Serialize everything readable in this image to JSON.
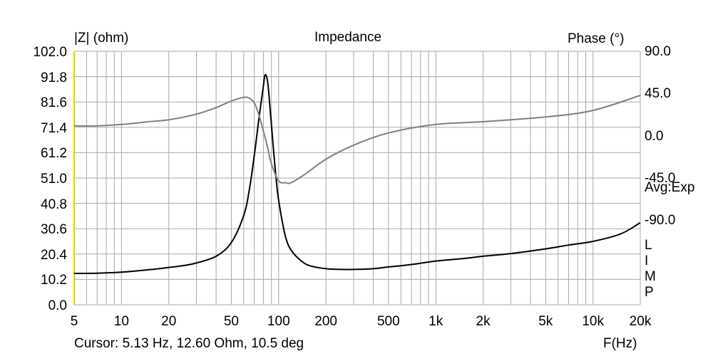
{
  "chart_data": {
    "type": "line",
    "title": "Impedance",
    "ylabel": "|Z| (ohm)",
    "y2label": "Phase (°)",
    "xlabel": "F(Hz)",
    "xscale": "log",
    "xlim": [
      5,
      20000
    ],
    "ylim": [
      0,
      102
    ],
    "y2lim": [
      -180,
      90
    ],
    "grid": true,
    "x_ticks": [
      5,
      10,
      20,
      50,
      100,
      200,
      500,
      1000,
      2000,
      5000,
      10000,
      20000
    ],
    "x_tick_labels": [
      "5",
      "10",
      "20",
      "50",
      "100",
      "200",
      "500",
      "1k",
      "2k",
      "5k",
      "10k",
      "20k"
    ],
    "y_ticks": [
      0.0,
      10.2,
      20.4,
      30.6,
      40.8,
      51.0,
      61.2,
      71.4,
      81.6,
      91.8,
      102.0
    ],
    "y_tick_labels": [
      "0.0",
      "10.2",
      "20.4",
      "30.6",
      "40.8",
      "51.0",
      "61.2",
      "71.4",
      "81.6",
      "91.8",
      "102.0"
    ],
    "y2_ticks": [
      90,
      45,
      0,
      -45,
      -90
    ],
    "y2_tick_labels": [
      "90.0",
      "45.0",
      "0.0",
      "-45.0",
      "-90.0"
    ],
    "series": [
      {
        "key": "impedance",
        "color": "#000000",
        "axis": "left",
        "x": [
          5,
          7,
          10,
          15,
          20,
          25,
          30,
          40,
          50,
          60,
          65,
          70,
          75,
          80,
          82,
          85,
          88,
          92,
          96,
          100,
          110,
          120,
          140,
          160,
          200,
          250,
          300,
          400,
          500,
          700,
          1000,
          1500,
          2000,
          3000,
          5000,
          7000,
          10000,
          15000,
          20000
        ],
        "y": [
          12.6,
          12.7,
          13.1,
          14.1,
          15.0,
          15.8,
          16.8,
          19.5,
          25.0,
          36.0,
          46.0,
          60.0,
          75.0,
          88.0,
          92.5,
          90.0,
          80.0,
          65.0,
          52.0,
          42.0,
          28.0,
          22.0,
          17.5,
          15.6,
          14.5,
          14.2,
          14.2,
          14.5,
          15.2,
          16.2,
          17.6,
          18.6,
          19.5,
          20.6,
          22.5,
          24.0,
          25.5,
          28.5,
          33.0
        ]
      },
      {
        "key": "phase",
        "color": "#808080",
        "axis": "right",
        "x": [
          5,
          7,
          10,
          15,
          20,
          30,
          40,
          50,
          60,
          65,
          70,
          75,
          80,
          85,
          90,
          100,
          110,
          120,
          150,
          200,
          300,
          500,
          1000,
          2000,
          5000,
          10000,
          20000
        ],
        "y": [
          10.5,
          10.5,
          12,
          15,
          17,
          23,
          30,
          37,
          41,
          40,
          35,
          22,
          5,
          -12,
          -30,
          -48,
          -50,
          -50,
          -40,
          -25,
          -10,
          3,
          12,
          15,
          20,
          27,
          43
        ]
      }
    ],
    "side_labels": [
      "L",
      "I",
      "M",
      "P"
    ],
    "annotation": "Avg:Exp",
    "cursor_readout": "Cursor: 5.13 Hz, 12.60 Ohm, 10.5 deg"
  }
}
